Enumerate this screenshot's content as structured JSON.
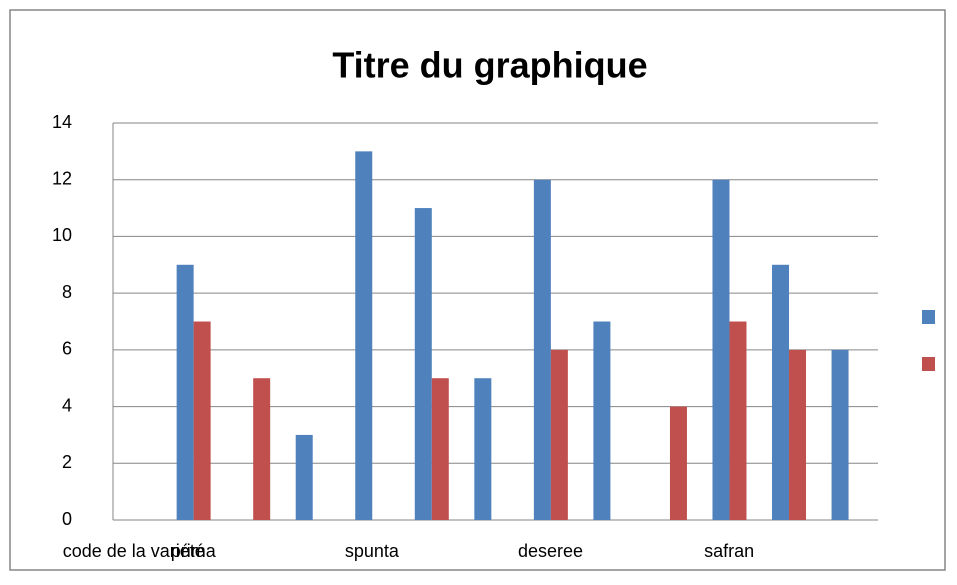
{
  "chart_data": {
    "type": "bar",
    "title": "Titre du graphique",
    "categories": [
      "code de la variété",
      "prima",
      null,
      null,
      "spunta",
      null,
      null,
      "deseree",
      null,
      null,
      "safran",
      null,
      null
    ],
    "series": [
      {
        "color": "#4f81bd",
        "values": [
          null,
          9,
          null,
          3,
          13,
          11,
          5,
          12,
          7,
          null,
          12,
          9,
          6
        ]
      },
      {
        "color": "#c0504d",
        "values": [
          null,
          7,
          5,
          null,
          null,
          5,
          null,
          6,
          null,
          4,
          7,
          6,
          null
        ]
      }
    ],
    "ylim": [
      0,
      14
    ],
    "yticks": [
      0,
      2,
      4,
      6,
      8,
      10,
      12,
      14
    ],
    "grid": true
  }
}
